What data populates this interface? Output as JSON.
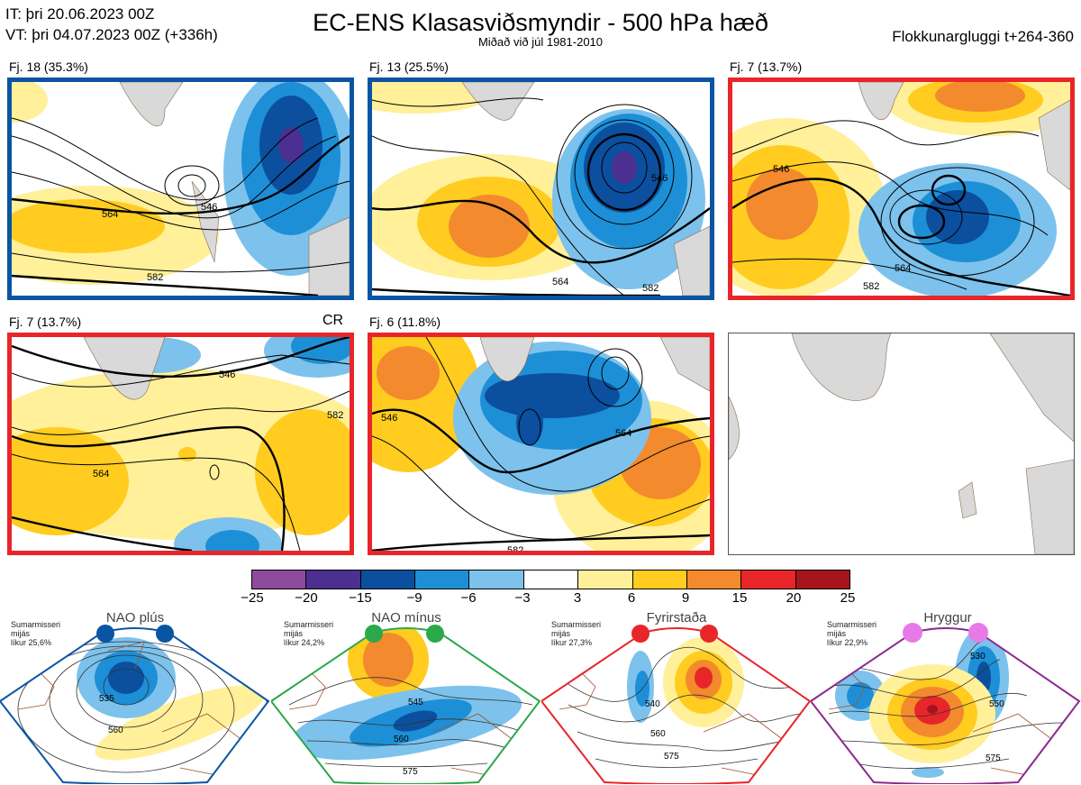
{
  "header": {
    "it": "IT: þri 20.06.2023 00Z",
    "vt": "VT: þri 04.07.2023 00Z  (+336h)",
    "title": "EC-ENS Klasasviðsmyndir - 500 hPa hæð",
    "subtitle": "Miðað við júl 1981-2010",
    "window": "Flokkunargluggi t+264-360"
  },
  "panels": [
    {
      "label": "Fj. 18 (35.3%)",
      "regime": "NAO plús",
      "border": "#0a55a3",
      "contours": [
        "546",
        "564",
        "582"
      ]
    },
    {
      "label": "Fj. 13 (25.5%)",
      "regime": "NAO plús",
      "border": "#0a55a3",
      "contours": [
        "546",
        "564",
        "582"
      ]
    },
    {
      "label": "Fj. 7 (13.7%)",
      "regime": "Fyrirstaða",
      "border": "#e8262a",
      "contours": [
        "546",
        "564",
        "582"
      ]
    },
    {
      "label": "Fj. 7 (13.7%)",
      "regime": "Fyrirstaða",
      "border": "#e8262a",
      "tag": "CR",
      "contours": [
        "546",
        "564",
        "582"
      ]
    },
    {
      "label": "Fj. 6 (11.8%)",
      "regime": "Fyrirstaða",
      "border": "#e8262a",
      "contours": [
        "546",
        "564",
        "582"
      ]
    }
  ],
  "colorbar": {
    "ticks": [
      "−25",
      "−20",
      "−15",
      "−9",
      "−6",
      "−3",
      "3",
      "6",
      "9",
      "15",
      "20",
      "25"
    ],
    "colors": [
      "#8e4a9d",
      "#4b2f91",
      "#0b4f9e",
      "#1d8fd6",
      "#7cc2ec",
      "#ffffff",
      "#fff099",
      "#ffcc1f",
      "#f38a2d",
      "#e8262a",
      "#a8141c"
    ]
  },
  "regimes": [
    {
      "name": "NAO plús",
      "season": "Sumarmisseri",
      "mean": "mijás",
      "prob": "líkur 25,6%",
      "color": "#0a55a3",
      "contours": [
        "535",
        "560"
      ]
    },
    {
      "name": "NAO mínus",
      "season": "Sumarmisseri",
      "mean": "mijás",
      "prob": "líkur 24,2%",
      "color": "#2aa84a",
      "contours": [
        "545",
        "560",
        "575"
      ]
    },
    {
      "name": "Fyrirstaða",
      "season": "Sumarmisseri",
      "mean": "mijás",
      "prob": "líkur 27,3%",
      "color": "#e8262a",
      "contours": [
        "540",
        "560",
        "575"
      ]
    },
    {
      "name": "Hryggur",
      "season": "Sumarmisseri",
      "mean": "mijás",
      "prob": "líkur 22,9%",
      "color": "#8a2a8e",
      "contours": [
        "530",
        "550",
        "575"
      ]
    }
  ]
}
